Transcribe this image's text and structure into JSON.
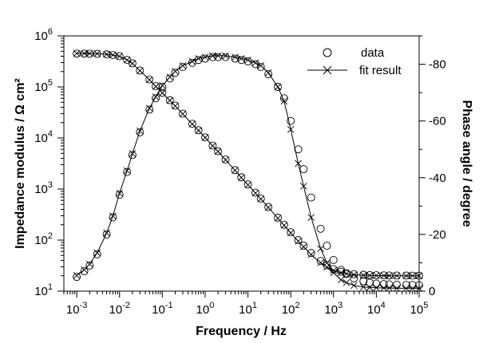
{
  "chart_data": {
    "type": "scatter",
    "xlabel": "Frequency / Hz",
    "ylabel_left": "Impedance modulus / Ω cm²",
    "ylabel_right": "Phase angle / degree",
    "x_scale": "log",
    "y_left_scale": "log",
    "xlim": [
      0.0005,
      100000
    ],
    "ylim_left": [
      10,
      1000000
    ],
    "ylim_right": [
      0,
      -90
    ],
    "x_ticks": [
      {
        "base": "10",
        "exp": "-3",
        "value": 0.001
      },
      {
        "base": "10",
        "exp": "-2",
        "value": 0.01
      },
      {
        "base": "10",
        "exp": "-1",
        "value": 0.1
      },
      {
        "base": "10",
        "exp": "0",
        "value": 1
      },
      {
        "base": "10",
        "exp": "1",
        "value": 10
      },
      {
        "base": "10",
        "exp": "2",
        "value": 100
      },
      {
        "base": "10",
        "exp": "3",
        "value": 1000
      },
      {
        "base": "10",
        "exp": "4",
        "value": 10000
      },
      {
        "base": "10",
        "exp": "5",
        "value": 100000
      }
    ],
    "y_left_ticks": [
      {
        "base": "10",
        "exp": "1",
        "value": 10
      },
      {
        "base": "10",
        "exp": "2",
        "value": 100
      },
      {
        "base": "10",
        "exp": "3",
        "value": 1000
      },
      {
        "base": "10",
        "exp": "4",
        "value": 10000
      },
      {
        "base": "10",
        "exp": "5",
        "value": 100000
      },
      {
        "base": "10",
        "exp": "6",
        "value": 1000000
      }
    ],
    "y_right_ticks": [
      {
        "label": "0",
        "value": 0
      },
      {
        "label": "-20",
        "value": -20
      },
      {
        "label": "-40",
        "value": -40
      },
      {
        "label": "-60",
        "value": -60
      },
      {
        "label": "-80",
        "value": -80
      }
    ],
    "legend": {
      "position": "top-right",
      "entries": [
        {
          "label": "data",
          "marker": "circle"
        },
        {
          "label": "fit result",
          "marker": "cross-line"
        }
      ]
    },
    "series": [
      {
        "axis": "left",
        "kind": "data",
        "marker": "circle",
        "x": [
          0.001,
          0.0015,
          0.002,
          0.003,
          0.005,
          0.007,
          0.01,
          0.015,
          0.02,
          0.03,
          0.05,
          0.07,
          0.1,
          0.15,
          0.2,
          0.3,
          0.5,
          0.7,
          1,
          1.5,
          2,
          3,
          5,
          7,
          10,
          15,
          20,
          30,
          50,
          70,
          100,
          150,
          200,
          300,
          500,
          700,
          1000,
          1500,
          2000,
          3000,
          5000,
          7000,
          10000,
          15000,
          20000,
          30000,
          50000,
          70000,
          100000
        ],
        "y": [
          450000,
          450000,
          448000,
          445000,
          435000,
          420000,
          400000,
          340000,
          290000,
          210000,
          140000,
          104000,
          77000,
          55000,
          43000,
          30000,
          19000,
          14200,
          10300,
          7100,
          5500,
          3800,
          2350,
          1700,
          1230,
          850,
          650,
          445,
          275,
          200,
          143,
          100,
          78,
          56,
          39,
          32,
          27,
          24,
          22.5,
          21.5,
          21,
          20.7,
          20.5,
          20.4,
          20.3,
          20.2,
          20.2,
          20.1,
          20.1
        ]
      },
      {
        "axis": "left",
        "kind": "fit",
        "marker": "cross",
        "x": [
          0.001,
          0.0015,
          0.002,
          0.003,
          0.005,
          0.007,
          0.01,
          0.015,
          0.02,
          0.03,
          0.05,
          0.07,
          0.1,
          0.15,
          0.2,
          0.3,
          0.5,
          0.7,
          1,
          1.5,
          2,
          3,
          5,
          7,
          10,
          15,
          20,
          30,
          50,
          70,
          100,
          150,
          200,
          300,
          500,
          700,
          1000,
          1500,
          2000,
          3000,
          5000,
          7000,
          10000,
          15000,
          20000,
          30000,
          50000,
          70000,
          100000
        ],
        "y": [
          455000,
          454000,
          452000,
          448000,
          437000,
          422000,
          398000,
          338000,
          288000,
          208000,
          138000,
          102000,
          76000,
          54500,
          42500,
          29600,
          18800,
          14000,
          10200,
          7000,
          5450,
          3750,
          2320,
          1680,
          1210,
          835,
          640,
          435,
          268,
          194,
          138,
          95,
          74,
          52,
          36,
          29.5,
          25.5,
          23,
          22,
          21,
          20.5,
          20.3,
          20.2,
          20.1,
          20.1,
          20,
          20,
          20,
          20
        ]
      },
      {
        "axis": "right",
        "kind": "data",
        "marker": "circle",
        "x": [
          0.001,
          0.0015,
          0.002,
          0.003,
          0.005,
          0.007,
          0.01,
          0.015,
          0.02,
          0.03,
          0.05,
          0.07,
          0.1,
          0.15,
          0.2,
          0.3,
          0.5,
          0.7,
          1,
          1.5,
          2,
          3,
          5,
          7,
          10,
          15,
          20,
          30,
          50,
          70,
          100,
          150,
          200,
          300,
          500,
          700,
          1000,
          1500,
          2000,
          3000,
          5000,
          7000,
          10000,
          15000,
          20000,
          30000,
          50000,
          70000,
          100000
        ],
        "y": [
          -5,
          -7,
          -9,
          -13,
          -20,
          -26,
          -34,
          -42,
          -48,
          -56,
          -64,
          -68,
          -72,
          -75,
          -77,
          -79,
          -80.5,
          -81.5,
          -82,
          -82.5,
          -82.5,
          -82.5,
          -82,
          -81.5,
          -81,
          -80,
          -79,
          -76.5,
          -72,
          -68,
          -60,
          -50,
          -43,
          -33,
          -22,
          -16,
          -11,
          -7.5,
          -6,
          -4.5,
          -3.5,
          -3,
          -2.7,
          -2.5,
          -2.4,
          -2.3,
          -2.2,
          -2.2,
          -2.1
        ]
      },
      {
        "axis": "right",
        "kind": "fit",
        "marker": "cross",
        "x": [
          0.001,
          0.0015,
          0.002,
          0.003,
          0.005,
          0.007,
          0.01,
          0.015,
          0.02,
          0.03,
          0.05,
          0.07,
          0.1,
          0.15,
          0.2,
          0.3,
          0.5,
          0.7,
          1,
          1.5,
          2,
          3,
          5,
          7,
          10,
          15,
          20,
          30,
          50,
          70,
          100,
          150,
          200,
          300,
          500,
          700,
          1000,
          1500,
          2000,
          3000,
          5000,
          7000,
          10000,
          15000,
          20000,
          30000,
          50000,
          70000,
          100000
        ],
        "y": [
          -5.5,
          -7.5,
          -9.5,
          -13.5,
          -20.5,
          -26.5,
          -34.5,
          -42.5,
          -48.5,
          -56.5,
          -64.5,
          -68.5,
          -72.5,
          -75.5,
          -77.5,
          -79.5,
          -81,
          -82,
          -82.5,
          -83,
          -83,
          -83,
          -82.5,
          -82,
          -81.5,
          -80.5,
          -79.5,
          -77,
          -72,
          -67,
          -57,
          -45,
          -37,
          -26,
          -15,
          -10,
          -6.5,
          -4,
          -3,
          -2,
          -1.5,
          -1.3,
          -1.2,
          -1.1,
          -1.1,
          -1,
          -1,
          -1,
          -1
        ]
      }
    ]
  }
}
